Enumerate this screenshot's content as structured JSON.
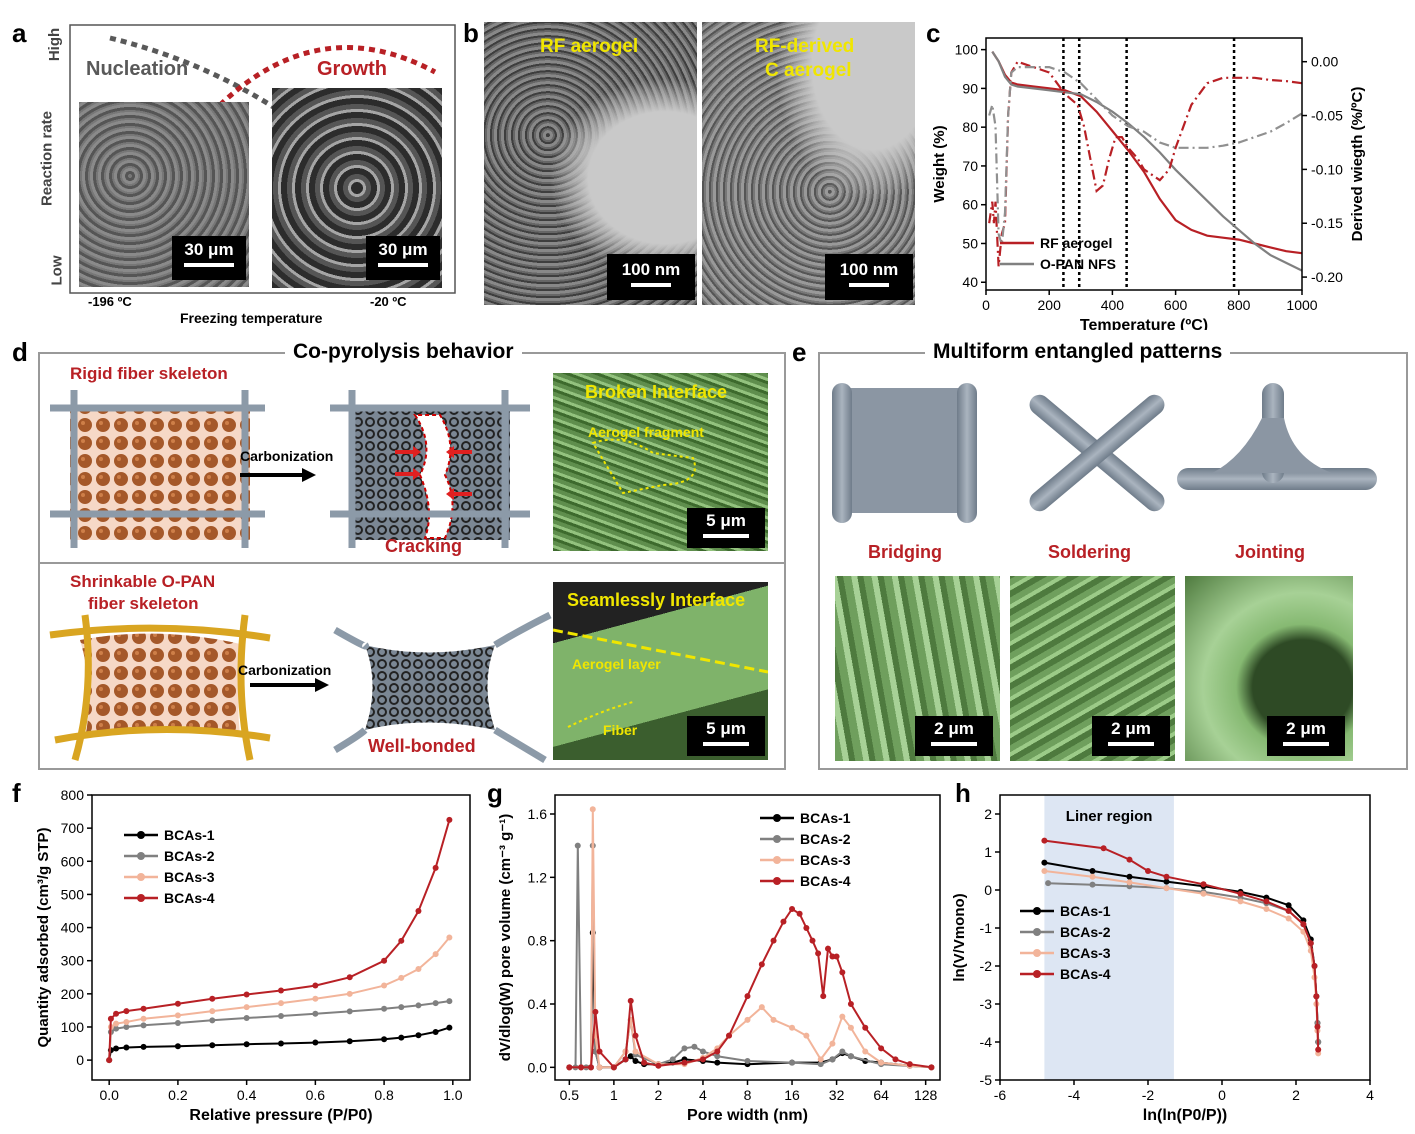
{
  "panel_labels": {
    "a": "a",
    "b": "b",
    "c": "c",
    "d": "d",
    "e": "e",
    "f": "f",
    "g": "g",
    "h": "h"
  },
  "a": {
    "y_high": "High",
    "y_low": "Low",
    "y_label": "Reaction rate",
    "nucleation": "Nucleation",
    "growth": "Growth",
    "x_left": "-196 ºC",
    "x_right": "-20 ºC",
    "x_label": "Freezing temperature",
    "scale1": "30 μm",
    "scale2": "30 μm"
  },
  "b": {
    "img1_label": "RF aerogel",
    "img2_label_1": "RF-derived",
    "img2_label_2": "C aerogel",
    "scale1": "100 nm",
    "scale2": "100 nm"
  },
  "d": {
    "title": "Co-pyrolysis behavior",
    "top_label": "Rigid fiber skeleton",
    "carbonization1": "Carbonization",
    "cracking": "Cracking",
    "broken_interface": "Broken Interface",
    "aerogel_fragment": "Aerogel fragment",
    "scale1": "5 μm",
    "bottom_label_1": "Shrinkable O-PAN",
    "bottom_label_2": "fiber skeleton",
    "carbonization2": "Carbonization",
    "well_bonded": "Well-bonded",
    "seamless_interface": "Seamlessly Interface",
    "aerogel_layer": "Aerogel layer",
    "fiber": "Fiber",
    "scale2": "5 μm"
  },
  "e": {
    "title": "Multiform entangled patterns",
    "bridging": "Bridging",
    "soldering": "Soldering",
    "jointing": "Jointing",
    "scale1": "2 μm",
    "scale2": "2 μm",
    "scale3": "2 μm"
  },
  "colors": {
    "red": "#b82025",
    "gray": "#808080",
    "black": "#000000",
    "salmon": "#f2b49a",
    "yellow_text": "#f0e600",
    "green_sem": "#7fb36a",
    "blue_region": "#dde6f3"
  },
  "chart_data": [
    {
      "id": "c",
      "type": "line",
      "xlabel": "Temperature (ºC)",
      "ylabel": "Weight (%)",
      "y2label": "Derived wiegth (%/ºC)",
      "xlim": [
        0,
        1000
      ],
      "ylim": [
        38,
        103
      ],
      "y2lim": [
        -0.212,
        0.022
      ],
      "xticks": [
        0,
        200,
        400,
        600,
        800,
        1000
      ],
      "yticks": [
        40,
        50,
        60,
        70,
        80,
        90,
        100
      ],
      "y2ticks": [
        0.0,
        -0.05,
        -0.1,
        -0.15,
        -0.2
      ],
      "y2ticklabels": [
        "0.00",
        "-0.05",
        "-0.10",
        "-0.15",
        "-0.20"
      ],
      "vlines": [
        245,
        295,
        445,
        785
      ],
      "legend_pos": "bottom-left",
      "series": [
        {
          "name": "RF aerogel",
          "axis": "left",
          "style": "solid",
          "color": "#b82025",
          "x": [
            20,
            40,
            60,
            80,
            100,
            150,
            200,
            250,
            300,
            350,
            400,
            450,
            500,
            550,
            600,
            650,
            700,
            750,
            800,
            850,
            900,
            950,
            1000
          ],
          "y": [
            99.5,
            97,
            93.5,
            91.5,
            91,
            90.5,
            90,
            89.5,
            88,
            84,
            79,
            74,
            68.5,
            61.5,
            56,
            53.5,
            52,
            51.5,
            51,
            50,
            49,
            48,
            47.5
          ]
        },
        {
          "name": "O-PAN NFS",
          "axis": "left",
          "style": "solid",
          "color": "#808080",
          "x": [
            20,
            40,
            60,
            80,
            100,
            150,
            200,
            250,
            300,
            350,
            400,
            450,
            500,
            550,
            600,
            650,
            700,
            750,
            800,
            850,
            900,
            950,
            1000
          ],
          "y": [
            99.5,
            97,
            93,
            91,
            90.5,
            90,
            89.5,
            89,
            88.5,
            86.5,
            84,
            81,
            77.5,
            73.5,
            69,
            65,
            61,
            57,
            53.5,
            50,
            47,
            45,
            43
          ]
        },
        {
          "axis": "right",
          "style": "dashdot",
          "color": "#b82025",
          "x": [
            10,
            20,
            25,
            30,
            40,
            50,
            60,
            70,
            80,
            100,
            150,
            200,
            250,
            290,
            310,
            330,
            350,
            370,
            390,
            410,
            430,
            450,
            480,
            500,
            550,
            580,
            600,
            650,
            700,
            750,
            800,
            850,
            900,
            950,
            1000
          ],
          "y": [
            -0.15,
            -0.13,
            -0.15,
            -0.13,
            -0.19,
            -0.16,
            -0.15,
            -0.05,
            -0.01,
            0.0,
            -0.005,
            -0.01,
            -0.03,
            -0.04,
            -0.06,
            -0.09,
            -0.12,
            -0.115,
            -0.09,
            -0.07,
            -0.07,
            -0.08,
            -0.09,
            -0.1,
            -0.11,
            -0.1,
            -0.08,
            -0.04,
            -0.02,
            -0.015,
            -0.015,
            -0.015,
            -0.017,
            -0.018,
            -0.02
          ]
        },
        {
          "axis": "right",
          "style": "dashdot",
          "color": "#909090",
          "x": [
            10,
            20,
            30,
            40,
            50,
            60,
            70,
            80,
            100,
            150,
            200,
            250,
            300,
            350,
            400,
            450,
            500,
            550,
            600,
            650,
            700,
            750,
            800,
            850,
            900,
            950,
            1000
          ],
          "y": [
            -0.05,
            -0.04,
            -0.06,
            -0.16,
            -0.17,
            -0.14,
            -0.05,
            -0.01,
            -0.005,
            -0.005,
            -0.005,
            -0.01,
            -0.02,
            -0.035,
            -0.05,
            -0.06,
            -0.065,
            -0.075,
            -0.08,
            -0.08,
            -0.08,
            -0.078,
            -0.075,
            -0.07,
            -0.065,
            -0.057,
            -0.048
          ]
        }
      ]
    },
    {
      "id": "f",
      "type": "line",
      "xlabel": "Relative pressure (P/P0)",
      "ylabel": "Quantity adsorbed (cm³/g STP)",
      "xlim": [
        -0.05,
        1.05
      ],
      "ylim": [
        -60,
        800
      ],
      "xticks": [
        0.0,
        0.2,
        0.4,
        0.6,
        0.8,
        1.0
      ],
      "xticklabels": [
        "0.0",
        "0.2",
        "0.4",
        "0.6",
        "0.8",
        "1.0"
      ],
      "yticks": [
        0,
        100,
        200,
        300,
        400,
        500,
        600,
        700,
        800
      ],
      "legend_pos": "top-left",
      "series": [
        {
          "name": "BCAs-1",
          "color": "#000000",
          "x": [
            0.0,
            0.005,
            0.02,
            0.05,
            0.1,
            0.2,
            0.3,
            0.4,
            0.5,
            0.6,
            0.7,
            0.8,
            0.85,
            0.9,
            0.95,
            0.99
          ],
          "y": [
            0,
            30,
            35,
            38,
            40,
            42,
            45,
            48,
            50,
            53,
            57,
            63,
            68,
            75,
            85,
            98
          ]
        },
        {
          "name": "BCAs-2",
          "color": "#808080",
          "x": [
            0.0,
            0.005,
            0.02,
            0.05,
            0.1,
            0.2,
            0.3,
            0.4,
            0.5,
            0.6,
            0.7,
            0.8,
            0.85,
            0.9,
            0.95,
            0.99
          ],
          "y": [
            0,
            85,
            95,
            100,
            105,
            112,
            120,
            127,
            133,
            140,
            147,
            155,
            160,
            165,
            172,
            178
          ]
        },
        {
          "name": "BCAs-3",
          "color": "#f2b49a",
          "x": [
            0.0,
            0.005,
            0.02,
            0.05,
            0.1,
            0.2,
            0.3,
            0.4,
            0.5,
            0.6,
            0.7,
            0.8,
            0.85,
            0.9,
            0.95,
            0.99
          ],
          "y": [
            0,
            100,
            110,
            115,
            125,
            135,
            148,
            160,
            172,
            185,
            200,
            225,
            248,
            275,
            320,
            370
          ]
        },
        {
          "name": "BCAs-4",
          "color": "#b82025",
          "x": [
            0.0,
            0.005,
            0.02,
            0.05,
            0.1,
            0.2,
            0.3,
            0.4,
            0.5,
            0.6,
            0.7,
            0.8,
            0.85,
            0.9,
            0.95,
            0.99
          ],
          "y": [
            0,
            125,
            140,
            148,
            155,
            170,
            185,
            198,
            210,
            225,
            250,
            300,
            360,
            450,
            580,
            725
          ]
        }
      ]
    },
    {
      "id": "g",
      "type": "line",
      "xlabel": "Pore width (nm)",
      "ylabel": "dV/dlog(W) pore volume (cm⁻³ g⁻¹)",
      "xscale": "log2",
      "xlim": [
        0.4,
        160
      ],
      "ylim": [
        -0.08,
        1.72
      ],
      "xticks": [
        0.5,
        1,
        2,
        4,
        8,
        16,
        32,
        64,
        128
      ],
      "xticklabels": [
        "0.5",
        "1",
        "2",
        "4",
        "8",
        "16",
        "32",
        "64",
        "128"
      ],
      "yticks": [
        0.0,
        0.4,
        0.8,
        1.2,
        1.6
      ],
      "yticklabels": [
        "0.0",
        "0.4",
        "0.8",
        "1.2",
        "1.6"
      ],
      "legend_pos": "top-right",
      "series": [
        {
          "name": "BCAs-1",
          "color": "#000000",
          "x": [
            0.5,
            0.6,
            0.7,
            0.72,
            0.75,
            0.8,
            1.0,
            1.2,
            1.3,
            1.4,
            1.6,
            2,
            2.5,
            3,
            4,
            5,
            8,
            16,
            25,
            30,
            35,
            40,
            50,
            64,
            100,
            140
          ],
          "y": [
            0,
            0,
            0,
            0.85,
            0.1,
            0,
            0,
            0.05,
            0.07,
            0.04,
            0.02,
            0.02,
            0.03,
            0.05,
            0.04,
            0.03,
            0.02,
            0.03,
            0.03,
            0.05,
            0.09,
            0.07,
            0.04,
            0.03,
            0.01,
            0
          ]
        },
        {
          "name": "BCAs-2",
          "color": "#808080",
          "x": [
            0.5,
            0.55,
            0.57,
            0.6,
            0.65,
            0.7,
            0.72,
            0.75,
            0.8,
            1.0,
            1.2,
            1.3,
            1.4,
            2,
            2.5,
            3,
            3.5,
            4,
            5,
            8,
            16,
            25,
            30,
            35,
            40,
            64,
            140
          ],
          "y": [
            0,
            0,
            1.4,
            0,
            0,
            0,
            1.4,
            0.1,
            0,
            0,
            0.1,
            0.3,
            0.08,
            0.02,
            0.05,
            0.12,
            0.13,
            0.1,
            0.07,
            0.04,
            0.03,
            0.02,
            0.05,
            0.1,
            0.07,
            0.02,
            0
          ]
        },
        {
          "name": "BCAs-3",
          "color": "#f2b49a",
          "x": [
            0.5,
            0.6,
            0.7,
            0.72,
            0.75,
            0.8,
            1.0,
            1.2,
            1.3,
            1.4,
            2,
            3,
            4,
            5,
            6,
            8,
            10,
            12,
            16,
            20,
            25,
            30,
            35,
            40,
            50,
            64,
            100,
            140
          ],
          "y": [
            0,
            0,
            0,
            1.63,
            0.2,
            0,
            0,
            0.1,
            0.3,
            0.1,
            0.02,
            0.02,
            0.06,
            0.12,
            0.2,
            0.3,
            0.38,
            0.3,
            0.25,
            0.2,
            0.05,
            0.15,
            0.32,
            0.25,
            0.1,
            0.03,
            0.01,
            0
          ]
        },
        {
          "name": "BCAs-4",
          "color": "#b82025",
          "x": [
            0.5,
            0.6,
            0.7,
            0.75,
            0.8,
            1.0,
            1.2,
            1.3,
            1.4,
            1.6,
            2,
            3,
            4,
            5,
            6,
            8,
            10,
            12,
            14,
            16,
            18,
            20,
            22,
            24,
            26,
            28,
            30,
            32,
            35,
            40,
            50,
            64,
            80,
            100,
            140
          ],
          "y": [
            0,
            0,
            0,
            0.35,
            0.1,
            0,
            0.05,
            0.42,
            0.2,
            0.03,
            0.01,
            0.03,
            0.05,
            0.1,
            0.2,
            0.45,
            0.65,
            0.8,
            0.92,
            1.0,
            0.97,
            0.88,
            0.8,
            0.72,
            0.45,
            0.75,
            0.7,
            0.7,
            0.6,
            0.4,
            0.25,
            0.12,
            0.05,
            0.02,
            0
          ]
        }
      ]
    },
    {
      "id": "h",
      "type": "line",
      "xlabel": "ln(ln(P0/P))",
      "ylabel": "ln(V/Vmono)",
      "xlim": [
        -6,
        4
      ],
      "ylim": [
        -5,
        2.5
      ],
      "xticks": [
        -6,
        -4,
        -2,
        0,
        2,
        4
      ],
      "yticks": [
        -5,
        -4,
        -3,
        -2,
        -1,
        0,
        1,
        2
      ],
      "region": {
        "label": "Liner region",
        "x": [
          -4.8,
          -1.3
        ]
      },
      "legend_pos": "bottom-left",
      "series": [
        {
          "name": "BCAs-1",
          "color": "#000000",
          "x": [
            -4.8,
            -3.5,
            -2.5,
            -1.5,
            -0.5,
            0.5,
            1.2,
            1.8,
            2.2,
            2.4,
            2.5,
            2.55,
            2.58,
            2.6
          ],
          "y": [
            0.72,
            0.5,
            0.35,
            0.22,
            0.1,
            -0.05,
            -0.2,
            -0.4,
            -0.8,
            -1.3,
            -2.0,
            -2.8,
            -3.5,
            -4.0
          ]
        },
        {
          "name": "BCAs-2",
          "color": "#808080",
          "x": [
            -4.7,
            -3.5,
            -2.5,
            -1.5,
            -0.5,
            0.5,
            1.2,
            1.8,
            2.2,
            2.4,
            2.5,
            2.55,
            2.58,
            2.6
          ],
          "y": [
            0.18,
            0.14,
            0.1,
            0.05,
            -0.05,
            -0.2,
            -0.35,
            -0.55,
            -0.9,
            -1.4,
            -2.0,
            -2.8,
            -3.5,
            -4.0
          ]
        },
        {
          "name": "BCAs-3",
          "color": "#f2b49a",
          "x": [
            -4.8,
            -3.5,
            -2.5,
            -1.5,
            -0.5,
            0.5,
            1.2,
            1.8,
            2.2,
            2.4,
            2.5,
            2.55,
            2.58,
            2.6
          ],
          "y": [
            0.5,
            0.35,
            0.2,
            0.05,
            -0.1,
            -0.3,
            -0.5,
            -0.75,
            -1.1,
            -1.6,
            -2.3,
            -3.0,
            -3.7,
            -4.3
          ]
        },
        {
          "name": "BCAs-4",
          "color": "#b82025",
          "x": [
            -4.8,
            -3.2,
            -2.5,
            -2.0,
            -1.5,
            -0.5,
            0.5,
            1.2,
            1.8,
            2.2,
            2.4,
            2.5,
            2.55,
            2.58,
            2.6
          ],
          "y": [
            1.3,
            1.1,
            0.8,
            0.5,
            0.35,
            0.15,
            -0.1,
            -0.3,
            -0.55,
            -0.9,
            -1.4,
            -2.0,
            -2.8,
            -3.6,
            -4.2
          ]
        }
      ]
    }
  ]
}
